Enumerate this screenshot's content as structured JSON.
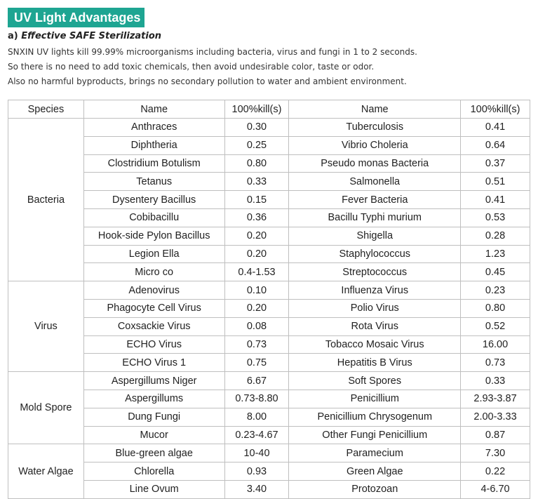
{
  "title": "UV Light Advantages",
  "subhead_prefix": "a)",
  "subhead_title": "Effective SAFE Sterilization",
  "paragraphs": [
    "SNXIN UV lights kill 99.99% microorganisms including bacteria, virus and fungi in 1 to 2 seconds.",
    "So there is no need to add toxic chemicals, then avoid undesirable color, taste or odor.",
    "Also no harmful byproducts, brings no secondary pollution to water and ambient environment."
  ],
  "table": {
    "headers": [
      "Species",
      "Name",
      "100%kill(s)",
      "Name",
      "100%kill(s)"
    ],
    "groups": [
      {
        "species": "Bacteria",
        "rows": [
          [
            "Anthraces",
            "0.30",
            "Tuberculosis",
            "0.41"
          ],
          [
            "Diphtheria",
            "0.25",
            "Vibrio Choleria",
            "0.64"
          ],
          [
            "Clostridium Botulism",
            "0.80",
            "Pseudo monas Bacteria",
            "0.37"
          ],
          [
            "Tetanus",
            "0.33",
            "Salmonella",
            "0.51"
          ],
          [
            "Dysentery Bacillus",
            "0.15",
            "Fever Bacteria",
            "0.41"
          ],
          [
            "Cobibacillu",
            "0.36",
            "Bacillu Typhi murium",
            "0.53"
          ],
          [
            "Hook-side Pylon Bacillus",
            "0.20",
            "Shigella",
            "0.28"
          ],
          [
            "Legion Ella",
            "0.20",
            "Staphylococcus",
            "1.23"
          ],
          [
            "Micro co",
            "0.4-1.53",
            "Streptococcus",
            "0.45"
          ]
        ]
      },
      {
        "species": "Virus",
        "rows": [
          [
            "Adenovirus",
            "0.10",
            "Influenza Virus",
            "0.23"
          ],
          [
            "Phagocyte Cell Virus",
            "0.20",
            "Polio Virus",
            "0.80"
          ],
          [
            "Coxsackie Virus",
            "0.08",
            "Rota Virus",
            "0.52"
          ],
          [
            "ECHO Virus",
            "0.73",
            "Tobacco Mosaic Virus",
            "16.00"
          ],
          [
            "ECHO Virus 1",
            "0.75",
            "Hepatitis B Virus",
            "0.73"
          ]
        ]
      },
      {
        "species": "Mold Spore",
        "rows": [
          [
            "Aspergillums Niger",
            "6.67",
            "Soft Spores",
            "0.33"
          ],
          [
            "Aspergillums",
            "0.73-8.80",
            "Penicillium",
            "2.93-3.87"
          ],
          [
            "Dung Fungi",
            "8.00",
            "Penicillium Chrysogenum",
            "2.00-3.33"
          ],
          [
            "Mucor",
            "0.23-4.67",
            "Other Fungi Penicillium",
            "0.87"
          ]
        ]
      },
      {
        "species": "Water Algae",
        "rows": [
          [
            "Blue-green algae",
            "10-40",
            "Paramecium",
            "7.30"
          ],
          [
            "Chlorella",
            "0.93",
            "Green Algae",
            "0.22"
          ],
          [
            "Line Ovum",
            "3.40",
            "Protozoan",
            "4-6.70"
          ]
        ]
      }
    ]
  }
}
